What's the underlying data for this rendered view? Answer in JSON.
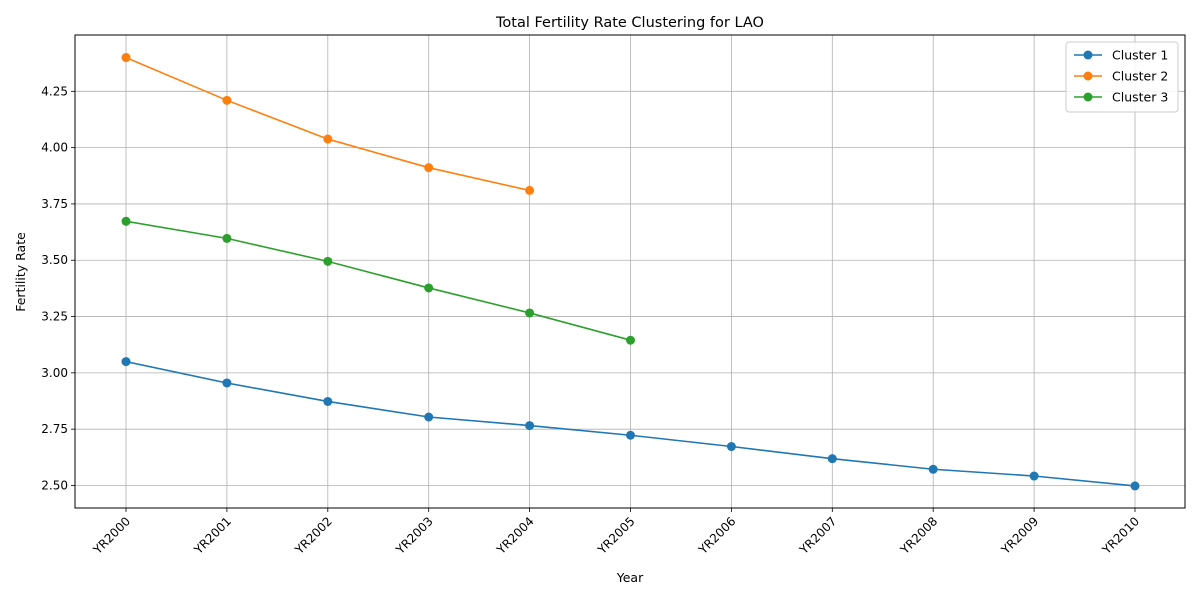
{
  "chart_data": {
    "type": "line",
    "title": "Total Fertility Rate Clustering for LAO",
    "xlabel": "Year",
    "ylabel": "Fertility Rate",
    "categories": [
      "YR2000",
      "YR2001",
      "YR2002",
      "YR2003",
      "YR2004",
      "YR2005",
      "YR2006",
      "YR2007",
      "YR2008",
      "YR2009",
      "YR2010"
    ],
    "ylim": [
      2.4,
      4.5
    ],
    "yticks": [
      "2.50",
      "2.75",
      "3.00",
      "3.25",
      "3.50",
      "3.75",
      "4.00",
      "4.25"
    ],
    "grid": true,
    "legend_position": "top-right",
    "series": [
      {
        "name": "Cluster 1",
        "color": "#1f77b4",
        "values": [
          3.05,
          2.955,
          2.873,
          2.804,
          2.766,
          2.723,
          2.673,
          2.619,
          2.572,
          2.542,
          2.498
        ]
      },
      {
        "name": "Cluster 2",
        "color": "#ff7f0e",
        "values": [
          4.4,
          4.21,
          4.038,
          3.911,
          3.81,
          null,
          null,
          null,
          null,
          null,
          null
        ]
      },
      {
        "name": "Cluster 3",
        "color": "#2ca02c",
        "values": [
          3.673,
          3.597,
          3.495,
          3.377,
          3.266,
          3.145,
          null,
          null,
          null,
          null,
          null
        ]
      }
    ]
  }
}
